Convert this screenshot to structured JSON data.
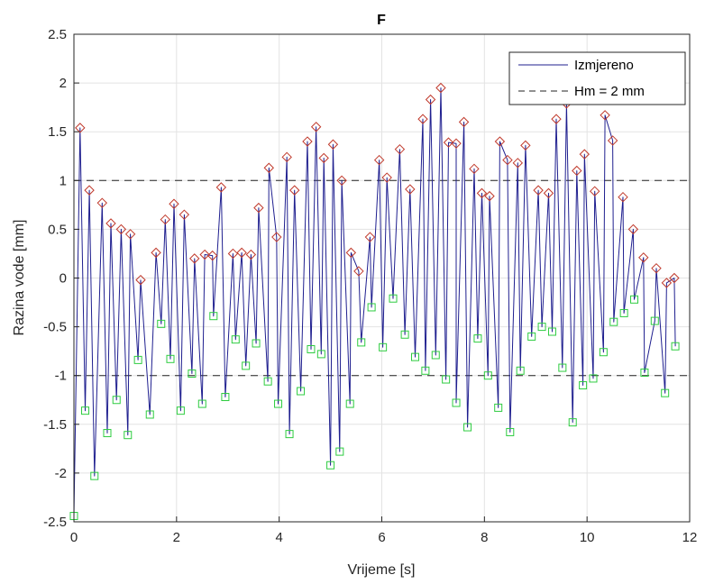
{
  "colors": {
    "measured": "#1f1f8f",
    "threshold": "#222222",
    "peak_marker": "#c0392b",
    "trough_marker": "#2ecc40",
    "grid": "#e3e3e3",
    "axis": "#262626"
  },
  "chart_data": {
    "type": "line",
    "title": "F",
    "xlabel": "Vrijeme [s]",
    "ylabel": "Razina vode [mm]",
    "xlim": [
      0,
      12
    ],
    "ylim": [
      -2.5,
      2.5
    ],
    "xticks": [
      "0",
      "2",
      "4",
      "6",
      "8",
      "10",
      "12"
    ],
    "yticks": [
      "-2.5",
      "-2",
      "-1.5",
      "-1",
      "-0.5",
      "0",
      "0.5",
      "1",
      "1.5",
      "2",
      "2.5"
    ],
    "grid": true,
    "legend": {
      "location": "top-right",
      "entries": [
        "Izmjereno",
        "Hm = 2 mm"
      ]
    },
    "threshold_lines": [
      1,
      -1
    ],
    "peaks": {
      "x": [
        0.12,
        0.3,
        0.55,
        0.72,
        0.92,
        1.1,
        1.3,
        1.6,
        1.78,
        1.95,
        2.15,
        2.35,
        2.55,
        2.7,
        2.87,
        3.1,
        3.27,
        3.45,
        3.6,
        3.8,
        3.95,
        4.15,
        4.3,
        4.55,
        4.72,
        4.87,
        5.05,
        5.22,
        5.4,
        5.55,
        5.77,
        5.95,
        6.1,
        6.35,
        6.55,
        6.8,
        6.95,
        7.15,
        7.3,
        7.45,
        7.6,
        7.8,
        7.95,
        8.1,
        8.3,
        8.45,
        8.65,
        8.8,
        9.05,
        9.25,
        9.4,
        9.6,
        9.8,
        9.95,
        10.15,
        10.35,
        10.5,
        10.7,
        10.9,
        11.1,
        11.35,
        11.55,
        11.7
      ],
      "y": [
        1.54,
        0.9,
        0.77,
        0.56,
        0.5,
        0.45,
        -0.02,
        0.26,
        0.6,
        0.76,
        0.65,
        0.2,
        0.24,
        0.23,
        0.93,
        0.25,
        0.26,
        0.24,
        0.72,
        1.13,
        0.42,
        1.24,
        0.9,
        1.4,
        1.55,
        1.23,
        1.37,
        1.0,
        0.26,
        0.07,
        0.42,
        1.21,
        1.03,
        1.32,
        0.91,
        1.63,
        1.83,
        1.95,
        1.39,
        1.38,
        1.6,
        1.12,
        0.87,
        0.84,
        1.4,
        1.21,
        1.18,
        1.36,
        0.9,
        0.87,
        1.63,
        1.79,
        1.1,
        1.27,
        0.89,
        1.67,
        1.41,
        0.83,
        0.5,
        0.21,
        0.1,
        -0.05,
        0.0
      ]
    },
    "troughs": {
      "x": [
        0.0,
        0.22,
        0.4,
        0.65,
        0.83,
        1.05,
        1.25,
        1.48,
        1.7,
        1.88,
        2.08,
        2.3,
        2.5,
        2.72,
        2.95,
        3.15,
        3.35,
        3.55,
        3.78,
        3.98,
        4.2,
        4.42,
        4.62,
        4.82,
        5.0,
        5.18,
        5.38,
        5.6,
        5.8,
        6.02,
        6.22,
        6.45,
        6.65,
        6.85,
        7.05,
        7.25,
        7.45,
        7.67,
        7.87,
        8.07,
        8.27,
        8.5,
        8.7,
        8.92,
        9.12,
        9.32,
        9.52,
        9.72,
        9.92,
        10.12,
        10.32,
        10.52,
        10.72,
        10.92,
        11.12,
        11.32,
        11.52,
        11.72
      ],
      "y": [
        -2.44,
        -1.36,
        -2.03,
        -1.59,
        -1.25,
        -1.61,
        -0.84,
        -1.4,
        -0.47,
        -0.83,
        -1.36,
        -0.98,
        -1.29,
        -0.39,
        -1.22,
        -0.63,
        -0.9,
        -0.67,
        -1.06,
        -1.29,
        -1.6,
        -1.16,
        -0.73,
        -0.78,
        -1.92,
        -1.78,
        -1.29,
        -0.66,
        -0.3,
        -0.71,
        -0.21,
        -0.58,
        -0.81,
        -0.95,
        -0.79,
        -1.04,
        -1.28,
        -1.53,
        -0.62,
        -1.0,
        -1.33,
        -1.58,
        -0.95,
        -0.6,
        -0.5,
        -0.55,
        -0.92,
        -1.48,
        -1.1,
        -1.03,
        -0.76,
        -0.45,
        -0.36,
        -0.22,
        -0.97,
        -0.44,
        -1.18,
        -0.7
      ]
    }
  }
}
